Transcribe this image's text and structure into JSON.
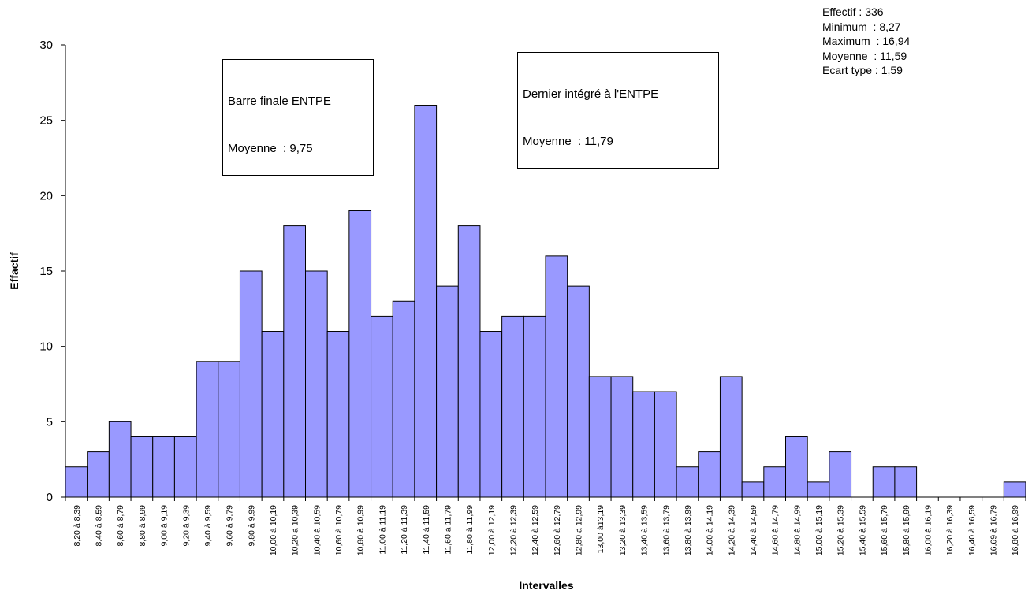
{
  "stats": {
    "lines": [
      "Effectif : 336",
      "Minimum  : 8,27",
      "Maximum  : 16,94",
      "Moyenne  : 11,59",
      "Ecart type : 1,59"
    ]
  },
  "annotations": [
    {
      "line1": "Barre finale ENTPE",
      "line2": "Moyenne  : 9,75"
    },
    {
      "line1": "Dernier intégré à l'ENTPE",
      "line2": "Moyenne  : 11,79"
    }
  ],
  "colors": {
    "bar_fill": "#9999ff",
    "bar_stroke": "#000000"
  },
  "chart_data": {
    "type": "bar",
    "title": "",
    "xlabel": "Intervalles",
    "ylabel": "Effactif",
    "ylim": [
      0,
      30
    ],
    "yticks": [
      0,
      5,
      10,
      15,
      20,
      25,
      30
    ],
    "grid": false,
    "categories": [
      "8,20 à 8,39",
      "8,40 à 8,59",
      "8,60 à 8,79",
      "8,80 à 8,99",
      "9,00 à 9,19",
      "9,20 à 9,39",
      "9,40 à 9,59",
      "9,60 à 9,79",
      "9,80 à 9,99",
      "10,00 à 10,19",
      "10,20 à 10,39",
      "10,40 à 10,59",
      "10,60 à 10,79",
      "10,80 à 10,99",
      "11,00 à 11,19",
      "11,20 à 11,39",
      "11,40 à 11,59",
      "11,60 à 11,79",
      "11,80 à 11,99",
      "12,00 à 12,19",
      "12,20 à 12,39",
      "12,40 à 12,59",
      "12,60 à 12,79",
      "12,80 à 12,99",
      "13,00 à13,19",
      "13,20 à 13,39",
      "13,40 à 13,59",
      "13,60 à 13,79",
      "13,80 à 13,99",
      "14,00 à 14,19",
      "14,20 à 14,39",
      "14,40 à 14,59",
      "14,60 à 14,79",
      "14,80 à 14,99",
      "15,00 à 15,19",
      "15,20 à 15,39",
      "15,40 à 15,59",
      "15,60 à 15,79",
      "15,80 à 15,99",
      "16,00 à 16,19",
      "16,20 à 16,39",
      "16,40 à 16,59",
      "16,69 à 16,79",
      "16,80 à 16,99"
    ],
    "values": [
      2,
      3,
      5,
      4,
      4,
      4,
      9,
      9,
      15,
      11,
      18,
      15,
      11,
      19,
      12,
      13,
      26,
      14,
      18,
      11,
      12,
      12,
      16,
      14,
      8,
      8,
      7,
      7,
      2,
      3,
      8,
      1,
      2,
      4,
      1,
      3,
      0,
      2,
      2,
      0,
      0,
      0,
      0,
      1
    ]
  }
}
